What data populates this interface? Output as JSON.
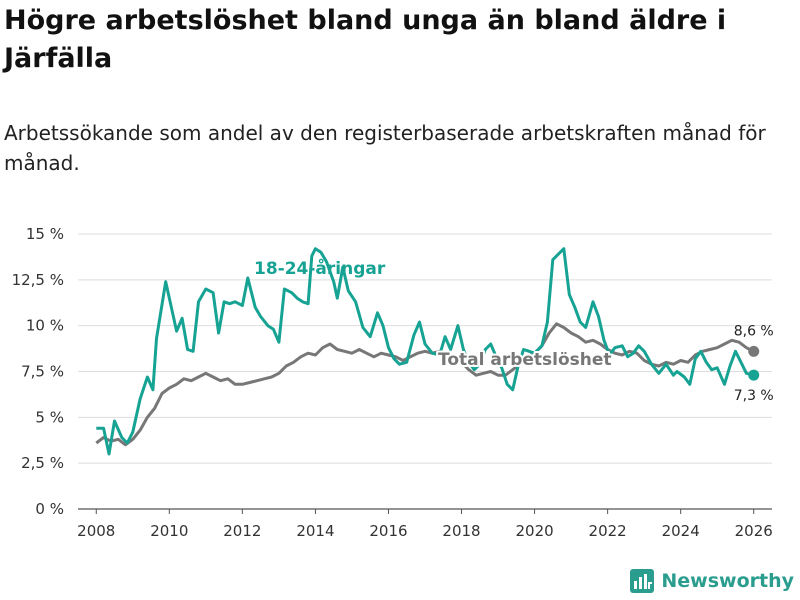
{
  "title": "Högre arbetslöshet bland unga än bland äldre i Järfälla",
  "subtitle": "Arbetssökande som andel av den registerbaserade arbetskraften månad för månad.",
  "brand": "Newsworthy",
  "colors": {
    "youth": "#16a394",
    "total": "#777777",
    "grid": "#dddddd",
    "brand": "#2a9d8f"
  },
  "chart_data": {
    "type": "line",
    "title": "Högre arbetslöshet bland unga än bland äldre i Järfälla",
    "xlabel": "",
    "ylabel": "",
    "xlim": [
      2007.5,
      2026.5
    ],
    "ylim": [
      0,
      15
    ],
    "x_ticks": [
      2008,
      2010,
      2012,
      2014,
      2016,
      2018,
      2020,
      2022,
      2024,
      2026
    ],
    "x_tick_labels": [
      "2008",
      "2010",
      "2012",
      "2014",
      "2016",
      "2018",
      "2020",
      "2022",
      "2024",
      "2026"
    ],
    "y_ticks": [
      0,
      2.5,
      5,
      7.5,
      10,
      12.5,
      15
    ],
    "y_tick_labels": [
      "0 %",
      "2,5 %",
      "5 %",
      "7,5 %",
      "10 %",
      "12,5 %",
      "15 %"
    ],
    "grid": true,
    "series": [
      {
        "name": "18-24-åringar",
        "label": "18-24-åringar",
        "end_label": "7,3 %",
        "end_value": 7.3,
        "points": [
          [
            2008.0,
            4.4
          ],
          [
            2008.2,
            4.4
          ],
          [
            2008.35,
            3.0
          ],
          [
            2008.5,
            4.8
          ],
          [
            2008.7,
            3.9
          ],
          [
            2008.85,
            3.6
          ],
          [
            2009.0,
            4.2
          ],
          [
            2009.2,
            6.0
          ],
          [
            2009.4,
            7.2
          ],
          [
            2009.55,
            6.5
          ],
          [
            2009.65,
            9.3
          ],
          [
            2009.9,
            12.4
          ],
          [
            2010.2,
            9.7
          ],
          [
            2010.35,
            10.4
          ],
          [
            2010.5,
            8.7
          ],
          [
            2010.65,
            8.6
          ],
          [
            2010.8,
            11.3
          ],
          [
            2011.0,
            12.0
          ],
          [
            2011.2,
            11.8
          ],
          [
            2011.35,
            9.6
          ],
          [
            2011.5,
            11.3
          ],
          [
            2011.65,
            11.2
          ],
          [
            2011.8,
            11.3
          ],
          [
            2012.0,
            11.1
          ],
          [
            2012.15,
            12.6
          ],
          [
            2012.35,
            11.0
          ],
          [
            2012.5,
            10.5
          ],
          [
            2012.7,
            10.0
          ],
          [
            2012.85,
            9.8
          ],
          [
            2013.0,
            9.1
          ],
          [
            2013.15,
            12.0
          ],
          [
            2013.35,
            11.8
          ],
          [
            2013.5,
            11.5
          ],
          [
            2013.65,
            11.3
          ],
          [
            2013.8,
            11.2
          ],
          [
            2013.9,
            13.8
          ],
          [
            2014.0,
            14.2
          ],
          [
            2014.15,
            14.0
          ],
          [
            2014.3,
            13.5
          ],
          [
            2014.5,
            12.4
          ],
          [
            2014.6,
            11.5
          ],
          [
            2014.75,
            13.2
          ],
          [
            2014.9,
            11.9
          ],
          [
            2015.1,
            11.3
          ],
          [
            2015.3,
            9.9
          ],
          [
            2015.5,
            9.4
          ],
          [
            2015.7,
            10.7
          ],
          [
            2015.85,
            10.0
          ],
          [
            2016.0,
            8.8
          ],
          [
            2016.15,
            8.2
          ],
          [
            2016.3,
            7.9
          ],
          [
            2016.5,
            8.0
          ],
          [
            2016.7,
            9.5
          ],
          [
            2016.85,
            10.2
          ],
          [
            2017.0,
            9.0
          ],
          [
            2017.2,
            8.5
          ],
          [
            2017.4,
            8.4
          ],
          [
            2017.55,
            9.4
          ],
          [
            2017.7,
            8.7
          ],
          [
            2017.9,
            10.0
          ],
          [
            2018.05,
            8.7
          ],
          [
            2018.2,
            8.0
          ],
          [
            2018.35,
            7.6
          ],
          [
            2018.5,
            7.9
          ],
          [
            2018.65,
            8.7
          ],
          [
            2018.8,
            9.0
          ],
          [
            2018.95,
            8.3
          ],
          [
            2019.1,
            7.7
          ],
          [
            2019.25,
            6.8
          ],
          [
            2019.4,
            6.5
          ],
          [
            2019.55,
            7.8
          ],
          [
            2019.7,
            8.7
          ],
          [
            2019.85,
            8.6
          ],
          [
            2020.0,
            8.5
          ],
          [
            2020.2,
            8.9
          ],
          [
            2020.35,
            10.2
          ],
          [
            2020.5,
            13.6
          ],
          [
            2020.65,
            13.9
          ],
          [
            2020.8,
            14.2
          ],
          [
            2020.95,
            11.7
          ],
          [
            2021.1,
            11.0
          ],
          [
            2021.25,
            10.2
          ],
          [
            2021.4,
            9.9
          ],
          [
            2021.6,
            11.3
          ],
          [
            2021.75,
            10.5
          ],
          [
            2021.9,
            9.2
          ],
          [
            2022.05,
            8.4
          ],
          [
            2022.2,
            8.8
          ],
          [
            2022.4,
            8.9
          ],
          [
            2022.55,
            8.3
          ],
          [
            2022.7,
            8.5
          ],
          [
            2022.85,
            8.9
          ],
          [
            2023.0,
            8.6
          ],
          [
            2023.2,
            7.9
          ],
          [
            2023.4,
            7.4
          ],
          [
            2023.6,
            7.9
          ],
          [
            2023.8,
            7.3
          ],
          [
            2023.9,
            7.5
          ],
          [
            2024.1,
            7.2
          ],
          [
            2024.25,
            6.8
          ],
          [
            2024.4,
            8.2
          ],
          [
            2024.55,
            8.6
          ],
          [
            2024.7,
            8.0
          ],
          [
            2024.85,
            7.6
          ],
          [
            2025.0,
            7.7
          ],
          [
            2025.2,
            6.8
          ],
          [
            2025.35,
            7.8
          ],
          [
            2025.5,
            8.6
          ],
          [
            2025.65,
            8.0
          ],
          [
            2025.8,
            7.4
          ],
          [
            2026.0,
            7.3
          ]
        ]
      },
      {
        "name": "Total arbetslöshet",
        "label": "Total arbetslöshet",
        "end_label": "8,6 %",
        "end_value": 8.6,
        "points": [
          [
            2008.0,
            3.6
          ],
          [
            2008.2,
            3.9
          ],
          [
            2008.4,
            3.7
          ],
          [
            2008.6,
            3.8
          ],
          [
            2008.8,
            3.5
          ],
          [
            2009.0,
            3.8
          ],
          [
            2009.2,
            4.3
          ],
          [
            2009.4,
            5.0
          ],
          [
            2009.6,
            5.5
          ],
          [
            2009.8,
            6.3
          ],
          [
            2010.0,
            6.6
          ],
          [
            2010.2,
            6.8
          ],
          [
            2010.4,
            7.1
          ],
          [
            2010.6,
            7.0
          ],
          [
            2010.8,
            7.2
          ],
          [
            2011.0,
            7.4
          ],
          [
            2011.2,
            7.2
          ],
          [
            2011.4,
            7.0
          ],
          [
            2011.6,
            7.1
          ],
          [
            2011.8,
            6.8
          ],
          [
            2012.0,
            6.8
          ],
          [
            2012.2,
            6.9
          ],
          [
            2012.4,
            7.0
          ],
          [
            2012.6,
            7.1
          ],
          [
            2012.8,
            7.2
          ],
          [
            2013.0,
            7.4
          ],
          [
            2013.2,
            7.8
          ],
          [
            2013.4,
            8.0
          ],
          [
            2013.6,
            8.3
          ],
          [
            2013.8,
            8.5
          ],
          [
            2014.0,
            8.4
          ],
          [
            2014.2,
            8.8
          ],
          [
            2014.4,
            9.0
          ],
          [
            2014.6,
            8.7
          ],
          [
            2014.8,
            8.6
          ],
          [
            2015.0,
            8.5
          ],
          [
            2015.2,
            8.7
          ],
          [
            2015.4,
            8.5
          ],
          [
            2015.6,
            8.3
          ],
          [
            2015.8,
            8.5
          ],
          [
            2016.0,
            8.4
          ],
          [
            2016.2,
            8.3
          ],
          [
            2016.4,
            8.1
          ],
          [
            2016.6,
            8.3
          ],
          [
            2016.8,
            8.5
          ],
          [
            2017.0,
            8.6
          ],
          [
            2017.2,
            8.5
          ],
          [
            2017.4,
            8.6
          ],
          [
            2017.6,
            8.4
          ],
          [
            2017.8,
            8.3
          ],
          [
            2018.0,
            8.0
          ],
          [
            2018.2,
            7.6
          ],
          [
            2018.4,
            7.3
          ],
          [
            2018.6,
            7.4
          ],
          [
            2018.8,
            7.5
          ],
          [
            2019.0,
            7.3
          ],
          [
            2019.2,
            7.3
          ],
          [
            2019.4,
            7.6
          ],
          [
            2019.6,
            7.9
          ],
          [
            2019.8,
            8.3
          ],
          [
            2020.0,
            8.5
          ],
          [
            2020.2,
            8.9
          ],
          [
            2020.4,
            9.6
          ],
          [
            2020.6,
            10.1
          ],
          [
            2020.8,
            9.9
          ],
          [
            2021.0,
            9.6
          ],
          [
            2021.2,
            9.4
          ],
          [
            2021.4,
            9.1
          ],
          [
            2021.6,
            9.2
          ],
          [
            2021.8,
            9.0
          ],
          [
            2022.0,
            8.7
          ],
          [
            2022.2,
            8.5
          ],
          [
            2022.4,
            8.4
          ],
          [
            2022.6,
            8.6
          ],
          [
            2022.8,
            8.5
          ],
          [
            2023.0,
            8.1
          ],
          [
            2023.2,
            7.9
          ],
          [
            2023.4,
            7.8
          ],
          [
            2023.6,
            8.0
          ],
          [
            2023.8,
            7.9
          ],
          [
            2024.0,
            8.1
          ],
          [
            2024.2,
            8.0
          ],
          [
            2024.4,
            8.4
          ],
          [
            2024.6,
            8.6
          ],
          [
            2024.8,
            8.7
          ],
          [
            2025.0,
            8.8
          ],
          [
            2025.2,
            9.0
          ],
          [
            2025.4,
            9.2
          ],
          [
            2025.6,
            9.1
          ],
          [
            2025.8,
            8.8
          ],
          [
            2026.0,
            8.6
          ]
        ]
      }
    ]
  }
}
